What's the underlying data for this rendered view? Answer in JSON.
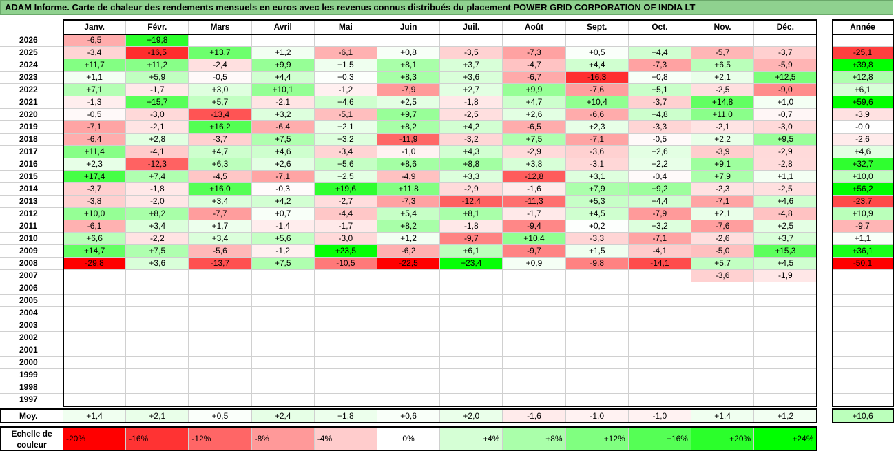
{
  "title": "ADAM Informe. Carte de chaleur des rendements mensuels en euros avec les revenus connus distribués du placement POWER GRID CORPORATION OF INDIA LT",
  "colors": {
    "title_bg": "#8fd18f",
    "neg_max": "#ff0000",
    "pos_max": "#00ff00",
    "neutral": "#ffffff"
  },
  "chart_data": {
    "type": "heatmap",
    "months": [
      "Janv.",
      "Févr.",
      "Mars",
      "Avril",
      "Mai",
      "Juin",
      "Juil.",
      "Août",
      "Sept.",
      "Oct.",
      "Nov.",
      "Déc."
    ],
    "year_header": "Année",
    "avg_label": "Moy.",
    "rows": [
      {
        "year": "2026",
        "months": [
          "-6,5",
          "+19,8",
          "",
          "",
          "",
          "",
          "",
          "",
          "",
          "",
          "",
          ""
        ],
        "annual": ""
      },
      {
        "year": "2025",
        "months": [
          "-3,4",
          "-16,5",
          "+13,7",
          "+1,2",
          "-6,1",
          "+0,8",
          "-3,5",
          "-7,3",
          "+0,5",
          "+4,4",
          "-5,7",
          "-3,7"
        ],
        "annual": "-25,1"
      },
      {
        "year": "2024",
        "months": [
          "+11,7",
          "+11,2",
          "-2,4",
          "+9,9",
          "+1,5",
          "+8,1",
          "+3,7",
          "-4,7",
          "+4,4",
          "-7,3",
          "+6,5",
          "-5,9"
        ],
        "annual": "+39,8"
      },
      {
        "year": "2023",
        "months": [
          "+1,1",
          "+5,9",
          "-0,5",
          "+4,4",
          "+0,3",
          "+8,3",
          "+3,6",
          "-6,7",
          "-16,3",
          "+0,8",
          "+2,1",
          "+12,5"
        ],
        "annual": "+12,8"
      },
      {
        "year": "2022",
        "months": [
          "+7,1",
          "-1,7",
          "+3,0",
          "+10,1",
          "-1,2",
          "-7,9",
          "+2,7",
          "+9,9",
          "-7,6",
          "+5,1",
          "-2,5",
          "-9,0"
        ],
        "annual": "+6,1"
      },
      {
        "year": "2021",
        "months": [
          "-1,3",
          "+15,7",
          "+5,7",
          "-2,1",
          "+4,6",
          "+2,5",
          "-1,8",
          "+4,7",
          "+10,4",
          "-3,7",
          "+14,8",
          "+1,0"
        ],
        "annual": "+59,6"
      },
      {
        "year": "2020",
        "months": [
          "-0,5",
          "-3,0",
          "-13,4",
          "+3,2",
          "-5,1",
          "+9,7",
          "-2,5",
          "+2,6",
          "-6,6",
          "+4,8",
          "+11,0",
          "-0,7"
        ],
        "annual": "-3,9"
      },
      {
        "year": "2019",
        "months": [
          "-7,1",
          "-2,1",
          "+16,2",
          "-6,4",
          "+2,1",
          "+8,2",
          "+4,2",
          "-6,5",
          "+2,3",
          "-3,3",
          "-2,1",
          "-3,0"
        ],
        "annual": "-0,0"
      },
      {
        "year": "2018",
        "months": [
          "-6,4",
          "+2,8",
          "-3,7",
          "+7,5",
          "+3,2",
          "-11,9",
          "-3,2",
          "+7,5",
          "-7,1",
          "-0,5",
          "+2,2",
          "+9,5"
        ],
        "annual": "-2,6"
      },
      {
        "year": "2017",
        "months": [
          "+11,4",
          "-4,1",
          "+4,7",
          "+4,6",
          "-3,4",
          "-1,0",
          "+4,3",
          "-2,9",
          "-3,6",
          "+2,6",
          "-3,9",
          "-2,9"
        ],
        "annual": "+4,6"
      },
      {
        "year": "2016",
        "months": [
          "+2,3",
          "-12,3",
          "+6,3",
          "+2,6",
          "+5,6",
          "+8,6",
          "+8,8",
          "+3,8",
          "-3,1",
          "+2,2",
          "+9,1",
          "-2,8"
        ],
        "annual": "+32,7"
      },
      {
        "year": "2015",
        "months": [
          "+17,4",
          "+7,4",
          "-4,5",
          "-7,1",
          "+2,5",
          "-4,9",
          "+3,3",
          "-12,8",
          "+3,1",
          "-0,4",
          "+7,9",
          "+1,1"
        ],
        "annual": "+10,0"
      },
      {
        "year": "2014",
        "months": [
          "-3,7",
          "-1,8",
          "+16,0",
          "-0,3",
          "+19,6",
          "+11,8",
          "-2,9",
          "-1,6",
          "+7,9",
          "+9,2",
          "-2,3",
          "-2,5"
        ],
        "annual": "+56,2"
      },
      {
        "year": "2013",
        "months": [
          "-3,8",
          "-2,0",
          "+3,4",
          "+4,2",
          "-2,7",
          "-7,3",
          "-12,4",
          "-11,3",
          "+5,3",
          "+4,4",
          "-7,1",
          "+4,6"
        ],
        "annual": "-23,7"
      },
      {
        "year": "2012",
        "months": [
          "+10,0",
          "+8,2",
          "-7,7",
          "+0,7",
          "-4,4",
          "+5,4",
          "+8,1",
          "-1,7",
          "+4,5",
          "-7,9",
          "+2,1",
          "-4,8"
        ],
        "annual": "+10,9"
      },
      {
        "year": "2011",
        "months": [
          "-6,1",
          "+3,4",
          "+1,7",
          "-1,4",
          "-1,7",
          "+8,2",
          "-1,8",
          "-9,4",
          "+0,2",
          "+3,2",
          "-7,6",
          "+2,5"
        ],
        "annual": "-9,7"
      },
      {
        "year": "2010",
        "months": [
          "+6,6",
          "-2,2",
          "+3,4",
          "+5,6",
          "-3,0",
          "+1,2",
          "-9,7",
          "+10,4",
          "-3,3",
          "-7,1",
          "-2,6",
          "+3,7"
        ],
        "annual": "+1,1"
      },
      {
        "year": "2009",
        "months": [
          "+14,7",
          "+7,5",
          "-5,6",
          "-1,2",
          "+23,5",
          "-6,2",
          "+6,1",
          "-9,7",
          "+1,5",
          "-4,1",
          "-5,0",
          "+15,3"
        ],
        "annual": "+36,1"
      },
      {
        "year": "2008",
        "months": [
          "-29,8",
          "+3,6",
          "-13,7",
          "+7,5",
          "-10,5",
          "-22,5",
          "+23,4",
          "+0,9",
          "-9,8",
          "-14,1",
          "+5,7",
          "+4,5"
        ],
        "annual": "-50,1"
      },
      {
        "year": "2007",
        "months": [
          "",
          "",
          "",
          "",
          "",
          "",
          "",
          "",
          "",
          "",
          "-3,6",
          "-1,9"
        ],
        "annual": ""
      },
      {
        "year": "2006",
        "months": [
          "",
          "",
          "",
          "",
          "",
          "",
          "",
          "",
          "",
          "",
          "",
          ""
        ],
        "annual": ""
      },
      {
        "year": "2005",
        "months": [
          "",
          "",
          "",
          "",
          "",
          "",
          "",
          "",
          "",
          "",
          "",
          ""
        ],
        "annual": ""
      },
      {
        "year": "2004",
        "months": [
          "",
          "",
          "",
          "",
          "",
          "",
          "",
          "",
          "",
          "",
          "",
          ""
        ],
        "annual": ""
      },
      {
        "year": "2003",
        "months": [
          "",
          "",
          "",
          "",
          "",
          "",
          "",
          "",
          "",
          "",
          "",
          ""
        ],
        "annual": ""
      },
      {
        "year": "2002",
        "months": [
          "",
          "",
          "",
          "",
          "",
          "",
          "",
          "",
          "",
          "",
          "",
          ""
        ],
        "annual": ""
      },
      {
        "year": "2001",
        "months": [
          "",
          "",
          "",
          "",
          "",
          "",
          "",
          "",
          "",
          "",
          "",
          ""
        ],
        "annual": ""
      },
      {
        "year": "2000",
        "months": [
          "",
          "",
          "",
          "",
          "",
          "",
          "",
          "",
          "",
          "",
          "",
          ""
        ],
        "annual": ""
      },
      {
        "year": "1999",
        "months": [
          "",
          "",
          "",
          "",
          "",
          "",
          "",
          "",
          "",
          "",
          "",
          ""
        ],
        "annual": ""
      },
      {
        "year": "1998",
        "months": [
          "",
          "",
          "",
          "",
          "",
          "",
          "",
          "",
          "",
          "",
          "",
          ""
        ],
        "annual": ""
      },
      {
        "year": "1997",
        "months": [
          "",
          "",
          "",
          "",
          "",
          "",
          "",
          "",
          "",
          "",
          "",
          ""
        ],
        "annual": ""
      }
    ],
    "averages": [
      "+1,4",
      "+2,1",
      "+0,5",
      "+2,4",
      "+1,8",
      "+0,6",
      "+2,0",
      "-1,6",
      "-1,0",
      "-1,0",
      "+1,4",
      "+1,2"
    ],
    "annual_average": "+10,6",
    "legend_label": "Echelle de couleur",
    "scale": [
      "-20%",
      "-16%",
      "-12%",
      "-8%",
      "-4%",
      "0%",
      "+4%",
      "+8%",
      "+12%",
      "+16%",
      "+20%",
      "+24%"
    ]
  }
}
